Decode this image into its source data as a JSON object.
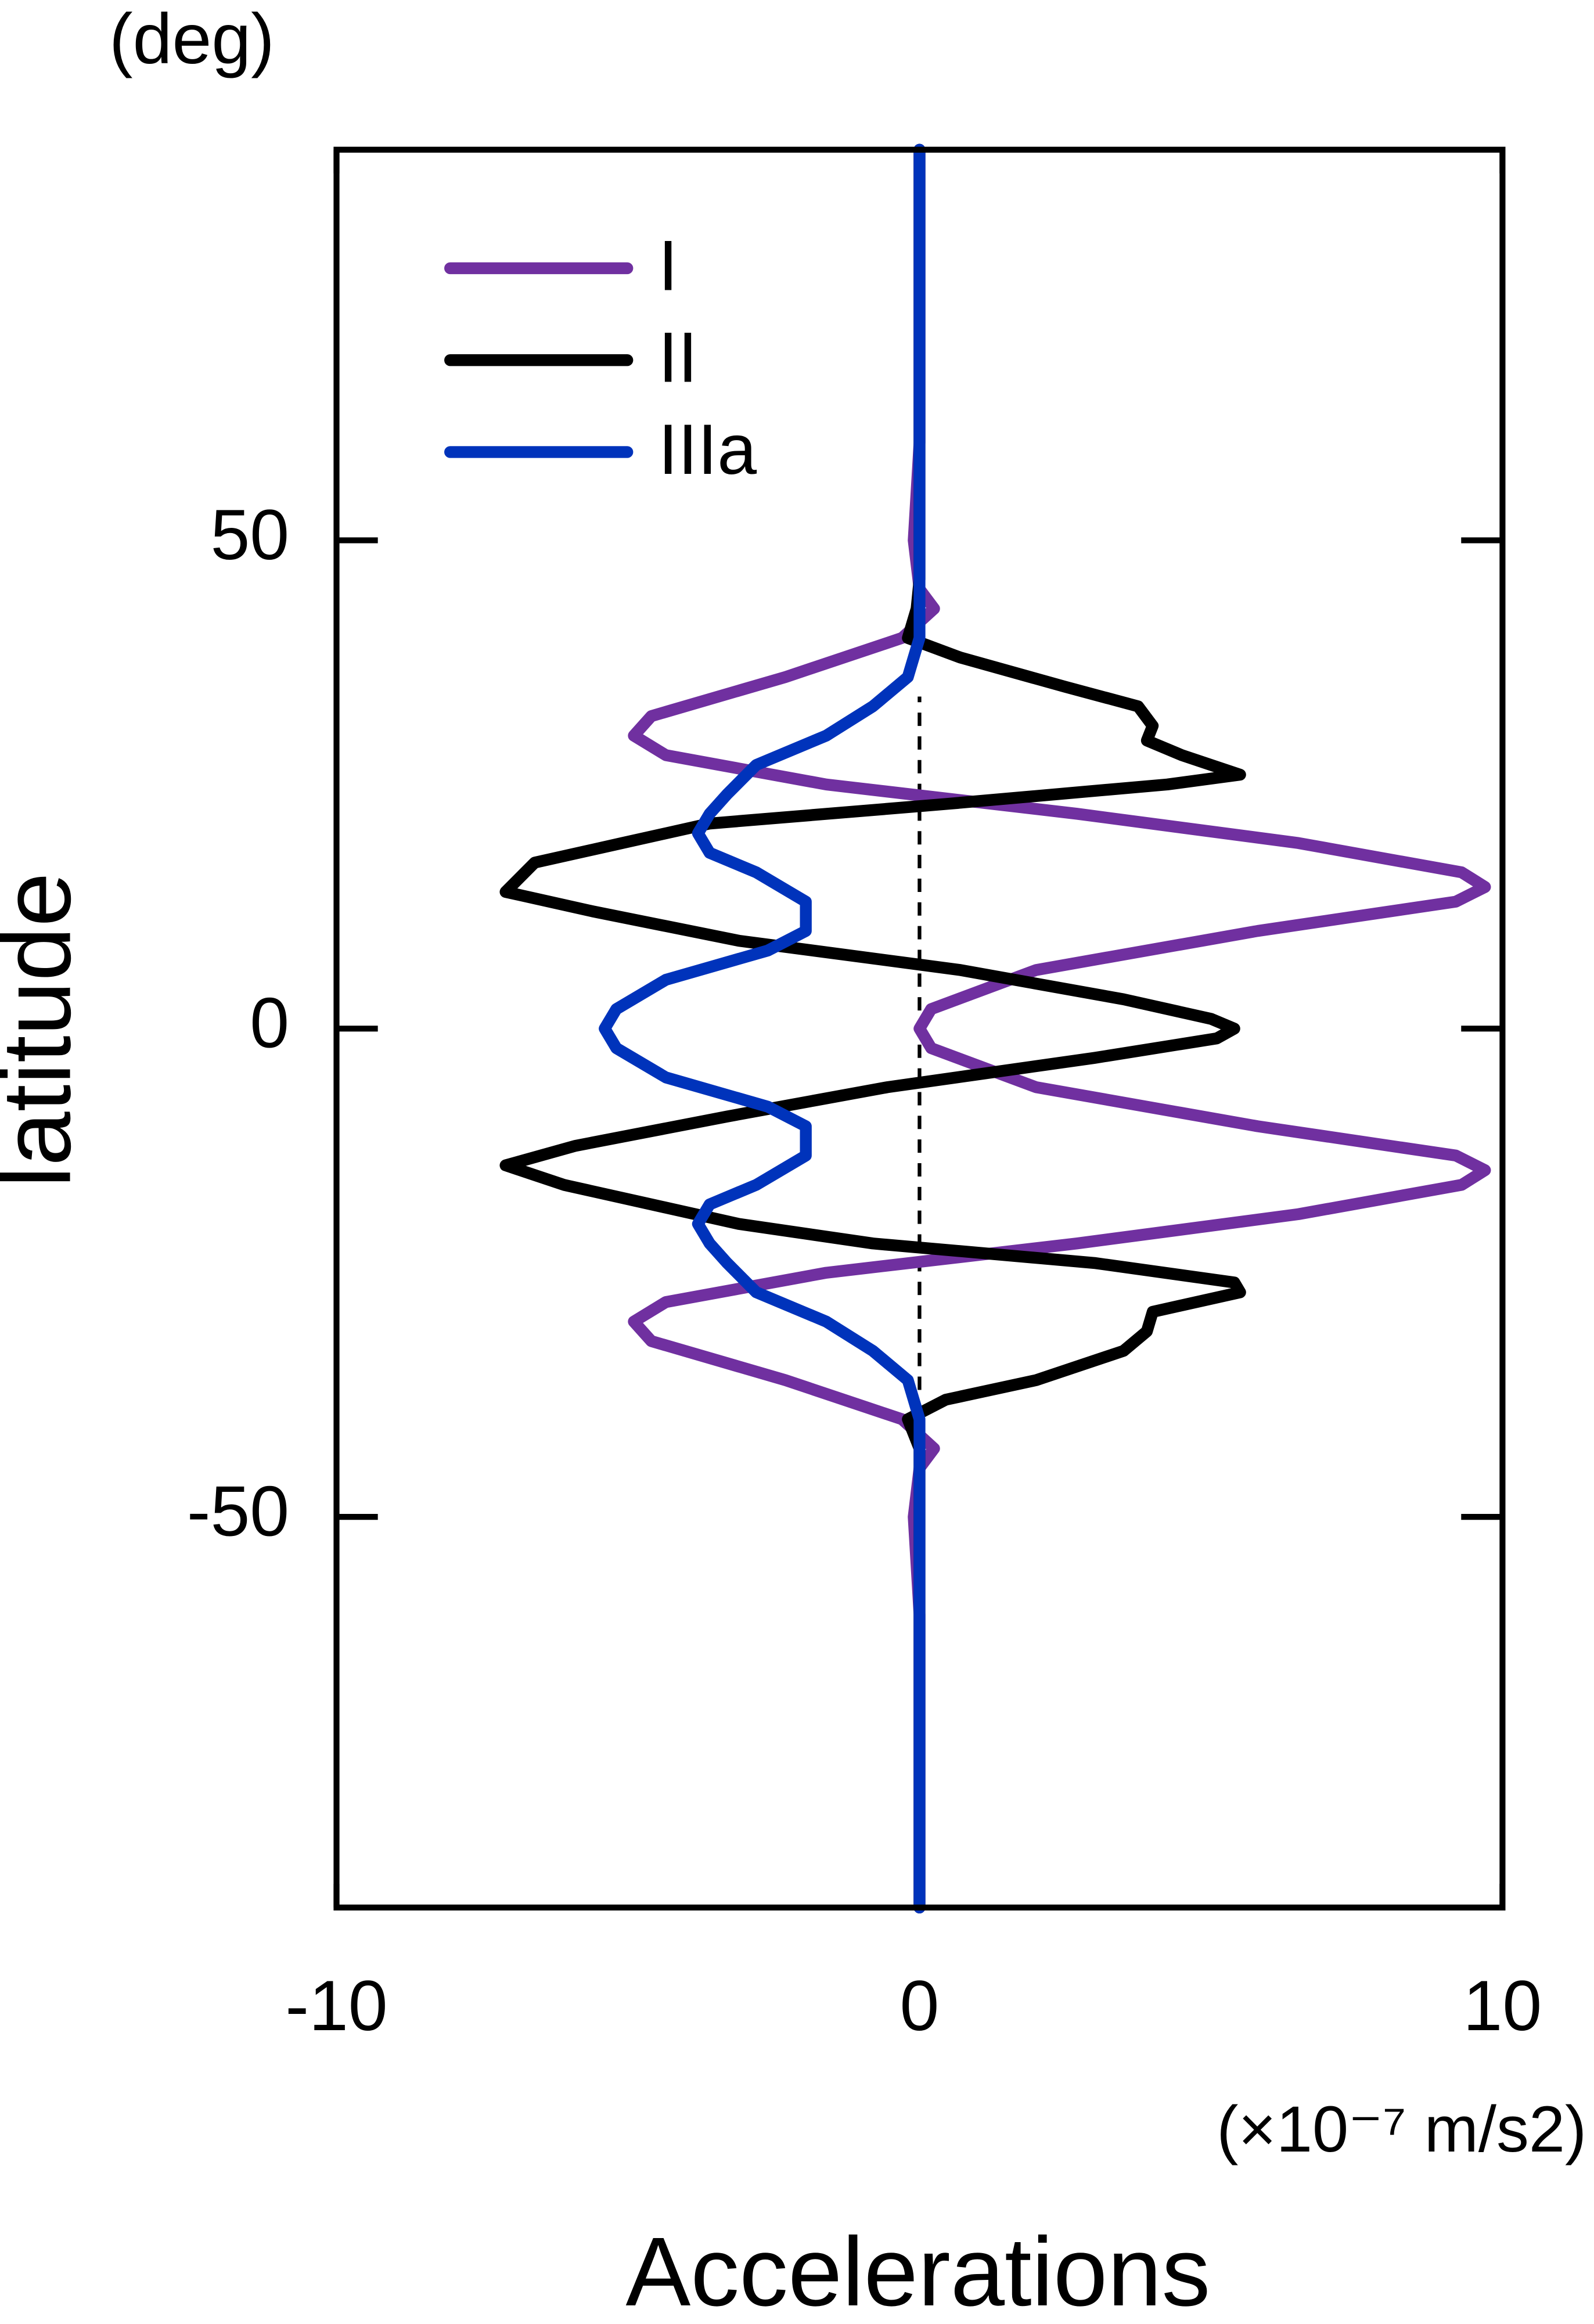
{
  "chart_data": {
    "type": "line",
    "y_unit": "(deg)",
    "y_label": "latitude",
    "x_label": "Accelerations",
    "x_unit": "(×10⁻⁷ m/s2)",
    "xlim": [
      -10,
      10
    ],
    "xticks": [
      -10,
      0,
      10
    ],
    "ylim": [
      -90,
      90
    ],
    "yticks": [
      -50,
      0,
      50
    ],
    "zero_line": {
      "x": 0,
      "from": -37,
      "to": 34
    },
    "legend": "upper left",
    "series": [
      {
        "name": "I",
        "color": "#7030a0",
        "latitude": [
          90,
          60,
          50,
          45,
          43,
          40,
          36,
          32,
          30,
          28,
          25,
          22,
          19,
          16,
          14.5,
          13,
          10,
          6,
          2,
          0,
          -2,
          -6,
          -10,
          -13,
          -14.5,
          -16,
          -19,
          -22,
          -25,
          -28,
          -30,
          -32,
          -36,
          -40,
          -43,
          -45,
          -50,
          -60,
          -90
        ],
        "values": [
          0,
          0,
          -0.1,
          0,
          0.25,
          -0.3,
          -2.3,
          -4.6,
          -4.9,
          -4.35,
          -1.6,
          2.7,
          6.5,
          9.3,
          9.7,
          9.2,
          5.8,
          2.0,
          0.2,
          0,
          0.2,
          2.0,
          5.8,
          9.2,
          9.7,
          9.3,
          6.5,
          2.7,
          -1.6,
          -4.35,
          -4.9,
          -4.6,
          -2.3,
          -0.3,
          0.25,
          0,
          -0.1,
          0,
          0
        ]
      },
      {
        "name": "II",
        "color": "#000000",
        "latitude": [
          90,
          46,
          43,
          40,
          38,
          35,
          33,
          31,
          29.5,
          28,
          26,
          25,
          23,
          21,
          19,
          17,
          14,
          12,
          9,
          6,
          3,
          1,
          0,
          -1,
          -3,
          -6,
          -9,
          -12,
          -14,
          -16,
          -18,
          -20,
          -22,
          -24,
          -26,
          -27,
          -29,
          -31,
          -33,
          -36,
          -38,
          -40,
          -43,
          -90
        ],
        "values": [
          0,
          0,
          -0.05,
          -0.2,
          0.7,
          2.5,
          3.75,
          4.0,
          3.9,
          4.5,
          5.5,
          4.25,
          0.45,
          -3.6,
          -5.1,
          -6.6,
          -7.1,
          -5.6,
          -3.1,
          0.7,
          3.5,
          5.0,
          5.4,
          5.1,
          3.0,
          -0.55,
          -3.3,
          -5.9,
          -7.1,
          -6.1,
          -4.6,
          -3.1,
          -0.8,
          3.0,
          5.4,
          5.5,
          4.0,
          3.9,
          3.5,
          2.0,
          0.45,
          -0.2,
          0,
          0
        ]
      },
      {
        "name": "IIIa",
        "color": "#0033bb",
        "latitude": [
          90,
          45,
          40,
          36,
          33,
          30,
          27,
          24,
          22,
          20,
          18,
          16,
          13,
          10,
          8,
          5,
          2,
          0,
          -2,
          -5,
          -8,
          -10,
          -13,
          -16,
          -18,
          -20,
          -22,
          -24,
          -27,
          -30,
          -33,
          -36,
          -40,
          -45,
          -90
        ],
        "values": [
          0,
          0,
          0,
          -0.2,
          -0.8,
          -1.6,
          -2.8,
          -3.3,
          -3.6,
          -3.8,
          -3.6,
          -2.8,
          -1.95,
          -1.95,
          -2.6,
          -4.35,
          -5.2,
          -5.4,
          -5.2,
          -4.35,
          -2.6,
          -1.95,
          -1.95,
          -2.8,
          -3.6,
          -3.8,
          -3.6,
          -3.3,
          -2.8,
          -1.6,
          -0.8,
          -0.2,
          0,
          0,
          0
        ]
      }
    ]
  }
}
